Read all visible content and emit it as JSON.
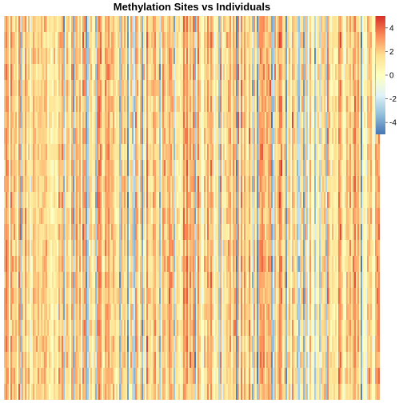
{
  "chart_data": {
    "type": "heatmap",
    "title": "Methylation Sites vs Individuals",
    "xlabel": "",
    "ylabel": "",
    "value_range": [
      -5,
      5
    ],
    "color_scale": {
      "low": "#4575b4",
      "mid": "#ffffbf",
      "high": "#d73027",
      "stops": [
        "#4575b4",
        "#91bfdb",
        "#e0f3f8",
        "#ffffbf",
        "#fee090",
        "#fc8d59",
        "#d73027"
      ]
    },
    "legend": {
      "placement": "right",
      "ticks": [
        4,
        2,
        0,
        -2,
        -4
      ],
      "tick_labels": [
        "4",
        "2",
        "0",
        "-2",
        "-4"
      ]
    },
    "grid": false
  }
}
